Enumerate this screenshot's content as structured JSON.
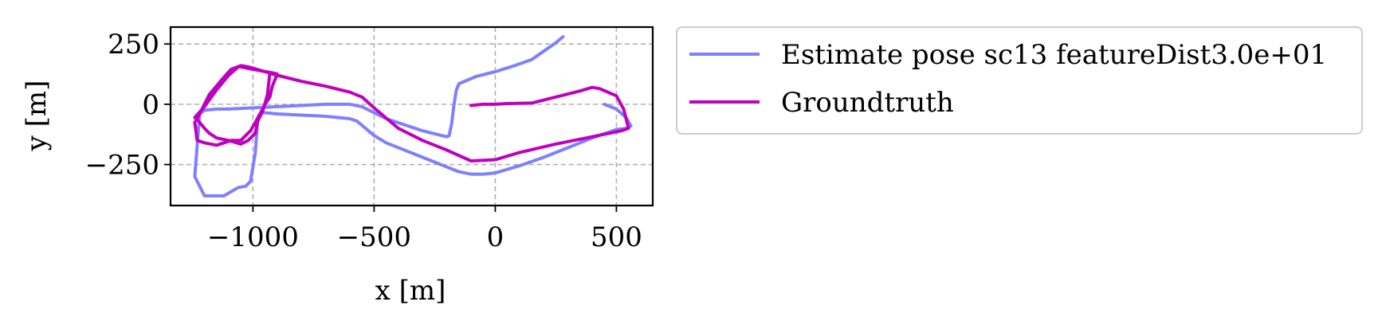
{
  "chart_data": {
    "type": "line",
    "title": "",
    "xlabel": "x [m]",
    "ylabel": "y [m]",
    "xlim": [
      -1340,
      650
    ],
    "ylim": [
      -420,
      320
    ],
    "xticks": [
      -1000,
      -500,
      0,
      500
    ],
    "xtick_labels": [
      "−1000",
      "−500",
      "0",
      "500"
    ],
    "yticks": [
      -250,
      0,
      250
    ],
    "ytick_labels": [
      "−250",
      "0",
      "250"
    ],
    "grid": true,
    "legend_position": "outside-right",
    "series": [
      {
        "name": "Estimate pose sc13 featureDist3.0e+01",
        "color": "#7f7fff",
        "x": [
          280,
          250,
          200,
          150,
          80,
          0,
          -80,
          -150,
          -160,
          -170,
          -180,
          -190,
          -200,
          -300,
          -450,
          -550,
          -600,
          -700,
          -800,
          -900,
          -1000,
          -1100,
          -1150,
          -1200,
          -1220,
          -1240,
          -1200,
          -1180,
          -1120,
          -1060,
          -1030,
          -1010,
          -1000,
          -990,
          -980,
          -975,
          -970,
          -960,
          -950,
          -900,
          -800,
          -700,
          -600,
          -570,
          -500,
          -450,
          -350,
          -250,
          -150,
          -100,
          -50,
          0,
          100,
          200,
          300,
          400,
          500,
          540,
          560,
          540,
          500,
          450
        ],
        "y": [
          280,
          255,
          220,
          185,
          160,
          135,
          115,
          85,
          60,
          0,
          -80,
          -130,
          -135,
          -110,
          -60,
          -10,
          0,
          0,
          -5,
          -10,
          -15,
          -20,
          -20,
          -25,
          -40,
          -300,
          -380,
          -380,
          -380,
          -345,
          -340,
          -320,
          -260,
          -200,
          -60,
          -45,
          -40,
          -35,
          -35,
          -40,
          -45,
          -50,
          -60,
          -70,
          -130,
          -160,
          -200,
          -240,
          -280,
          -290,
          -290,
          -285,
          -255,
          -220,
          -180,
          -140,
          -105,
          -100,
          -90,
          -55,
          -20,
          0
        ]
      },
      {
        "name": "Groundtruth",
        "color": "#bf00bf",
        "x": [
          -100,
          -50,
          0,
          50,
          150,
          250,
          350,
          400,
          430,
          500,
          530,
          550,
          520,
          400,
          250,
          100,
          0,
          -100,
          -200,
          -300,
          -400,
          -500,
          -550,
          -600,
          -700,
          -800,
          -900,
          -920,
          -950,
          -1000,
          -1020,
          -1050,
          -1090,
          -1130,
          -1180,
          -1225,
          -1240,
          -1230,
          -1200,
          -1150,
          -1090,
          -1050,
          -1030,
          -1010,
          -990,
          -960,
          -950,
          -930,
          -920,
          -900,
          -920,
          -1000,
          -1050,
          -1060,
          -1100,
          -1150,
          -1200,
          -1240,
          -1220,
          -1200,
          -1180,
          -1150,
          -1100,
          -1050,
          -1020,
          -990,
          -980,
          -960,
          -940,
          -930
        ],
        "y": [
          -5,
          0,
          0,
          3,
          5,
          30,
          55,
          70,
          65,
          35,
          -20,
          -100,
          -110,
          -135,
          -165,
          -200,
          -230,
          -235,
          -190,
          -150,
          -100,
          -15,
          30,
          50,
          75,
          95,
          120,
          125,
          135,
          150,
          155,
          160,
          145,
          100,
          40,
          -50,
          -75,
          -150,
          -160,
          -170,
          -150,
          -150,
          -130,
          -110,
          -75,
          -20,
          0,
          30,
          75,
          125,
          130,
          145,
          155,
          155,
          120,
          60,
          -10,
          -55,
          -75,
          -100,
          -120,
          -140,
          -150,
          -165,
          -150,
          -120,
          -70,
          -30,
          40,
          130
        ]
      }
    ]
  }
}
